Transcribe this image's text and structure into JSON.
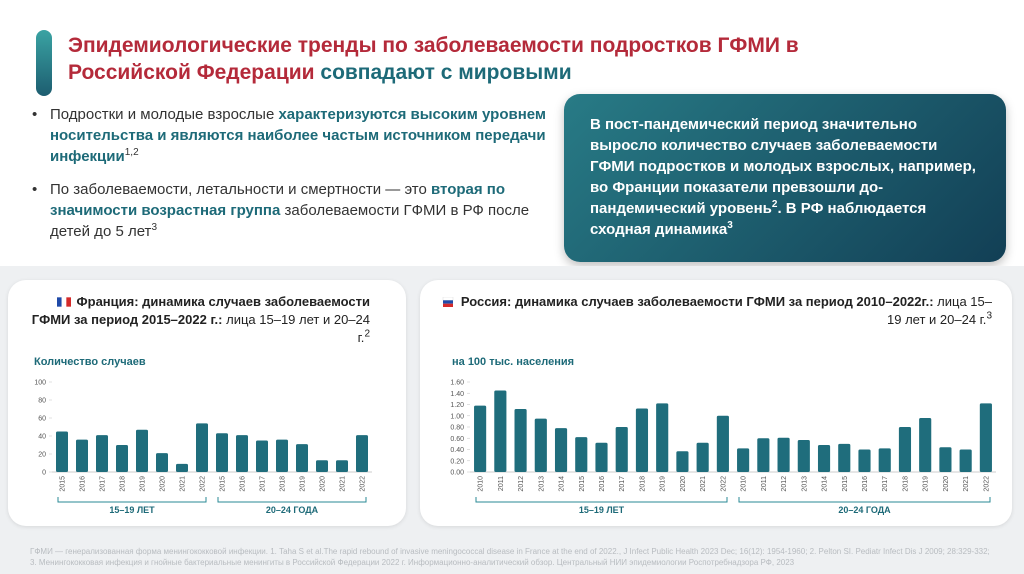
{
  "title": [
    "Эпидемиологические тренды по заболеваемости подростков ГФМИ в Российской Федерации",
    "совпадают с мировыми"
  ],
  "bullets": [
    [
      "Подростки и молодые взрослые ",
      "характеризуются высоким уровнем носительства и являются наиболее частым источником передачи инфекции",
      "1,2"
    ],
    [
      "По заболеваемости, летальности и смертности — это ",
      "вторая по значимости возрастная группа",
      " заболеваемости ГФМИ в РФ после детей до 5 лет",
      "3"
    ]
  ],
  "callout": [
    "В пост-пандемический период значительно выросло количество случаев заболеваемости ГФМИ подростков и молодых взрослых, например, во Франции показатели превзошли до-пандемический уровень",
    "2",
    ". В РФ наблюдается сходная динамика",
    "3"
  ],
  "chart_data": [
    {
      "type": "bar",
      "title": [
        "Франция: динамика случаев заболеваемости ГФМИ за период 2015–2022 г.:",
        " лица 15–19 лет и 20–24 г.",
        "2"
      ],
      "y_label": "Количество случаев",
      "categories": [
        "2015",
        "2016",
        "2017",
        "2018",
        "2019",
        "2020",
        "2021",
        "2022"
      ],
      "series": [
        {
          "name": "15–19 ЛЕТ",
          "color": "#1f6d7c",
          "values": [
            45,
            36,
            41,
            30,
            47,
            21,
            9,
            54
          ]
        },
        {
          "name": "20–24 ГОДА",
          "color": "#1f6d7c",
          "values": [
            43,
            41,
            35,
            36,
            31,
            13,
            13,
            41
          ]
        }
      ],
      "ylim": [
        0,
        100
      ],
      "yticks": [
        0,
        20,
        40,
        60,
        80,
        100
      ]
    },
    {
      "type": "bar",
      "title": [
        "Россия: динамика случаев заболеваемости ГФМИ за период 2010–2022г.:",
        " лица 15–19 лет и 20–24 г.",
        "3"
      ],
      "y_label": "на 100 тыс. населения",
      "categories": [
        "2010",
        "2011",
        "2012",
        "2013",
        "2014",
        "2015",
        "2016",
        "2017",
        "2018",
        "2019",
        "2020",
        "2021",
        "2022"
      ],
      "series": [
        {
          "name": "15–19 ЛЕТ",
          "color": "#1f6d7c",
          "values": [
            1.18,
            1.45,
            1.12,
            0.95,
            0.78,
            0.62,
            0.52,
            0.8,
            1.13,
            1.22,
            0.37,
            0.52,
            1.0
          ]
        },
        {
          "name": "20–24 ГОДА",
          "color": "#1f6d7c",
          "values": [
            0.42,
            0.6,
            0.61,
            0.57,
            0.48,
            0.5,
            0.4,
            0.42,
            0.8,
            0.96,
            0.44,
            0.4,
            1.22
          ]
        }
      ],
      "ylim": [
        0,
        1.6
      ],
      "yticks": [
        {
          "value": 0,
          "label": "0.00"
        },
        {
          "value": 0.2,
          "label": "0.20"
        },
        {
          "value": 0.4,
          "label": "0.40"
        },
        {
          "value": 0.6,
          "label": "0.60"
        },
        {
          "value": 0.8,
          "label": "0.80"
        },
        {
          "value": 1,
          "label": "1.00"
        },
        {
          "value": 1.2,
          "label": "1.20"
        },
        {
          "value": 1.4,
          "label": "1.40"
        },
        {
          "value": 1.6,
          "label": "1.60"
        }
      ]
    }
  ],
  "footnote": "ГФМИ — генерализованная форма менингококковой инфекции. 1. Taha S et al.The rapid rebound of invasive meningococcal disease in France at the end of 2022., J Infect Public Health 2023 Dec; 16(12): 1954-1960; 2. Pelton SI. Pediatr Infect Dis J 2009; 28:329-332; 3. Менингококковая инфекция и гнойные бактериальные менингиты в Российской Федерации 2022 г. Информационно-аналитический обзор. Центральный НИИ эпидемиологии Роспотребнадзора РФ, 2023"
}
